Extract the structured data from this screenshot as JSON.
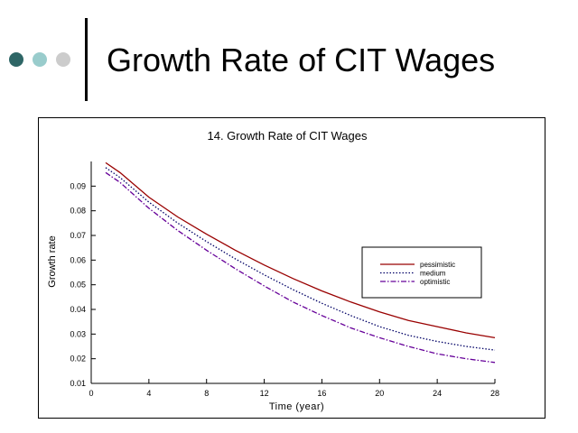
{
  "slide": {
    "title": "Growth Rate of CIT Wages",
    "dot_colors": [
      "#2E6666",
      "#99CCCC",
      "#CCCCCC"
    ]
  },
  "chart_data": {
    "type": "line",
    "title": "14.   Growth Rate of CIT Wages",
    "xlabel": "Time (year)",
    "ylabel": "Growth rate",
    "xlim": [
      0,
      28
    ],
    "ylim": [
      0.01,
      0.1
    ],
    "xticks": [
      0,
      4,
      8,
      12,
      16,
      20,
      24,
      28
    ],
    "yticks": [
      0.01,
      0.02,
      0.03,
      0.04,
      0.05,
      0.06,
      0.07,
      0.08,
      0.09
    ],
    "grid": false,
    "legend_position": "right",
    "series": [
      {
        "name": "pessimistic",
        "color": "#990000",
        "dash": "solid",
        "x": [
          1,
          2,
          4,
          6,
          8,
          10,
          12,
          14,
          16,
          18,
          20,
          22,
          24,
          26,
          28
        ],
        "y": [
          0.0995,
          0.0955,
          0.0855,
          0.0775,
          0.0705,
          0.064,
          0.058,
          0.0525,
          0.0475,
          0.043,
          0.039,
          0.0355,
          0.033,
          0.0305,
          0.0285
        ]
      },
      {
        "name": "medium",
        "color": "#000066",
        "dash": "dotted",
        "x": [
          1,
          2,
          4,
          6,
          8,
          10,
          12,
          14,
          16,
          18,
          20,
          22,
          24,
          26,
          28
        ],
        "y": [
          0.0975,
          0.0935,
          0.0835,
          0.075,
          0.0675,
          0.0605,
          0.054,
          0.048,
          0.0425,
          0.0375,
          0.033,
          0.0295,
          0.027,
          0.025,
          0.0235
        ]
      },
      {
        "name": "optimistic",
        "color": "#660099",
        "dash": "dashdot",
        "x": [
          1,
          2,
          4,
          6,
          8,
          10,
          12,
          14,
          16,
          18,
          20,
          22,
          24,
          26,
          28
        ],
        "y": [
          0.0955,
          0.0915,
          0.081,
          0.072,
          0.064,
          0.0565,
          0.0495,
          0.043,
          0.0375,
          0.0325,
          0.0285,
          0.025,
          0.022,
          0.02,
          0.0185
        ]
      }
    ]
  }
}
